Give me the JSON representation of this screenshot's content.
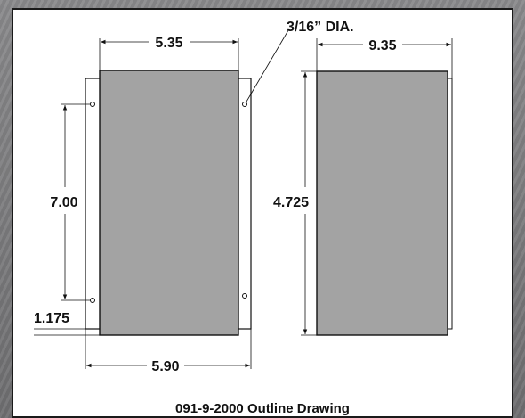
{
  "drawing": {
    "title": "091-9-2000 Outline Drawing",
    "front_view": {
      "dim_top_width": "5.35",
      "dim_bottom_width": "5.90",
      "dim_hole_spacing": "7.00",
      "dim_bottom_offset": "1.175",
      "hole_callout": "3/16” DIA."
    },
    "side_view": {
      "dim_depth": "9.35",
      "dim_height": "4.725"
    },
    "colors": {
      "body_fill": "#a3a3a3",
      "line": "#111111",
      "background": "#7e7e80"
    }
  }
}
